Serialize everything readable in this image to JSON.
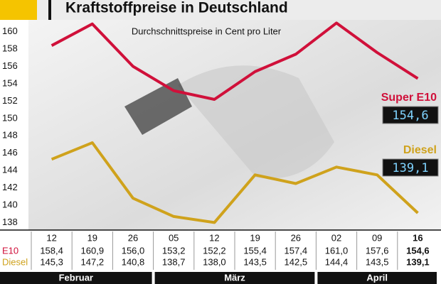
{
  "chart_data": {
    "type": "line",
    "title": "Kraftstoffpreise in Deutschland",
    "subtitle": "Durchschnittspreise in Cent pro Liter",
    "months": [
      {
        "name": "Februar",
        "days": [
          "12",
          "19",
          "26"
        ]
      },
      {
        "name": "März",
        "days": [
          "05",
          "12",
          "19",
          "26"
        ]
      },
      {
        "name": "April",
        "days": [
          "02",
          "09",
          "16"
        ]
      }
    ],
    "series": [
      {
        "name": "Super E10",
        "row_label": "E10",
        "color": "#d0103a",
        "values": [
          158.4,
          160.9,
          156.0,
          153.2,
          152.2,
          155.4,
          157.4,
          161.0,
          157.6,
          154.6
        ],
        "value_labels": [
          "158,4",
          "160,9",
          "156,0",
          "153,2",
          "152,2",
          "155,4",
          "157,4",
          "161,0",
          "157,6",
          "154,6"
        ]
      },
      {
        "name": "Diesel",
        "row_label": "Diesel",
        "color": "#cfa21c",
        "values": [
          145.3,
          147.2,
          140.8,
          138.7,
          138.0,
          143.5,
          142.5,
          144.4,
          143.5,
          139.1
        ],
        "value_labels": [
          "145,3",
          "147,2",
          "140,8",
          "138,7",
          "138,0",
          "143,5",
          "142,5",
          "144,4",
          "143,5",
          "139,1"
        ]
      }
    ],
    "ylim": [
      137.3,
      161.2
    ],
    "yticks": [
      138,
      140,
      142,
      144,
      146,
      148,
      150,
      152,
      154,
      156,
      158,
      160
    ]
  }
}
